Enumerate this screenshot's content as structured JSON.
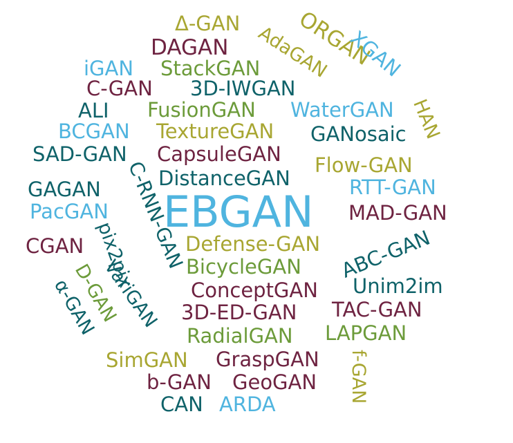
{
  "palette": {
    "teal": "#0f6269",
    "maroon": "#6e2341",
    "olive": "#a8a632",
    "sky": "#4fb4df",
    "green": "#6c9b3a"
  },
  "words": [
    {
      "text": "EBGAN",
      "color": "sky"
    },
    {
      "text": "Δ-GAN",
      "color": "olive"
    },
    {
      "text": "DAGAN",
      "color": "maroon"
    },
    {
      "text": "AdaGAN",
      "color": "olive"
    },
    {
      "text": "ORGAN",
      "color": "olive"
    },
    {
      "text": "XGAN",
      "color": "sky"
    },
    {
      "text": "iGAN",
      "color": "sky"
    },
    {
      "text": "StackGAN",
      "color": "green"
    },
    {
      "text": "C-GAN",
      "color": "maroon"
    },
    {
      "text": "3D-IWGAN",
      "color": "teal"
    },
    {
      "text": "ALI",
      "color": "teal"
    },
    {
      "text": "FusionGAN",
      "color": "green"
    },
    {
      "text": "WaterGAN",
      "color": "sky"
    },
    {
      "text": "HAN",
      "color": "olive"
    },
    {
      "text": "BCGAN",
      "color": "sky"
    },
    {
      "text": "TextureGAN",
      "color": "olive"
    },
    {
      "text": "GANosaic",
      "color": "teal"
    },
    {
      "text": "SAD-GAN",
      "color": "teal"
    },
    {
      "text": "CapsuleGAN",
      "color": "maroon"
    },
    {
      "text": "Flow-GAN",
      "color": "olive"
    },
    {
      "text": "GAGAN",
      "color": "teal"
    },
    {
      "text": "C-RNN-GAN",
      "color": "teal"
    },
    {
      "text": "DistanceGAN",
      "color": "teal"
    },
    {
      "text": "RTT-GAN",
      "color": "sky"
    },
    {
      "text": "PacGAN",
      "color": "sky"
    },
    {
      "text": "MAD-GAN",
      "color": "maroon"
    },
    {
      "text": "CGAN",
      "color": "maroon"
    },
    {
      "text": "pix2pix",
      "color": "teal"
    },
    {
      "text": "Defense-GAN",
      "color": "olive"
    },
    {
      "text": "ABC-GAN",
      "color": "teal"
    },
    {
      "text": "D-GAN",
      "color": "green"
    },
    {
      "text": "VariGAN",
      "color": "teal"
    },
    {
      "text": "BicycleGAN",
      "color": "green"
    },
    {
      "text": "α-GAN",
      "color": "teal"
    },
    {
      "text": "ConceptGAN",
      "color": "maroon"
    },
    {
      "text": "Unim2im",
      "color": "teal"
    },
    {
      "text": "3D-ED-GAN",
      "color": "maroon"
    },
    {
      "text": "TAC-GAN",
      "color": "maroon"
    },
    {
      "text": "RadialGAN",
      "color": "green"
    },
    {
      "text": "LAPGAN",
      "color": "green"
    },
    {
      "text": "SimGAN",
      "color": "olive"
    },
    {
      "text": "GraspGAN",
      "color": "maroon"
    },
    {
      "text": "f-GAN",
      "color": "olive"
    },
    {
      "text": "b-GAN",
      "color": "maroon"
    },
    {
      "text": "GeoGAN",
      "color": "maroon"
    },
    {
      "text": "CAN",
      "color": "teal"
    },
    {
      "text": "ARDA",
      "color": "sky"
    }
  ]
}
